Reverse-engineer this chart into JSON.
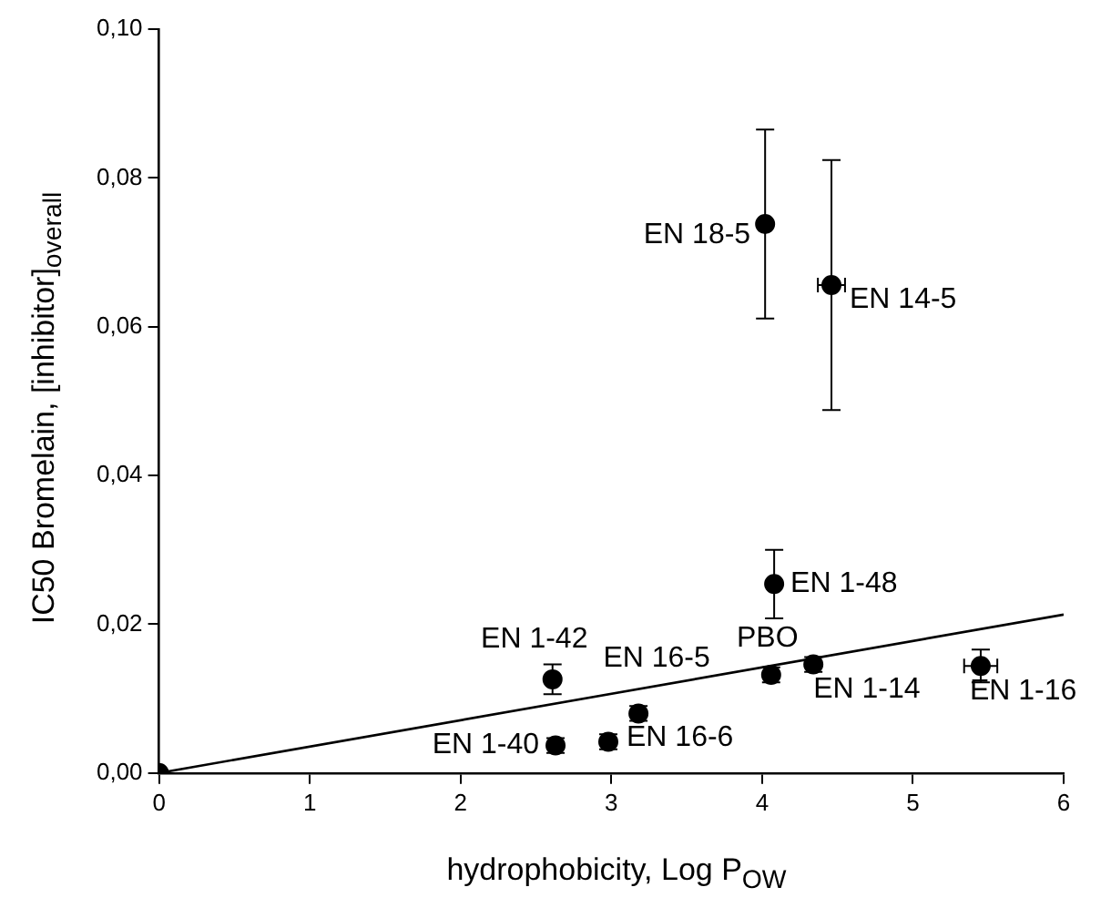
{
  "chart_data": {
    "type": "scatter",
    "xlabel": "hydrophobicity, Log P$_{OW}$",
    "ylabel": "IC50 Bromelain, [inhibitor]$_{overall}$",
    "series": [
      {
        "marker": "circle",
        "color": "#000000",
        "x": [
          0,
          4.02,
          4.46,
          4.08,
          4.06,
          4.34,
          5.45,
          2.61,
          3.18,
          2.63,
          2.98
        ],
        "values": [
          0,
          0.0738,
          0.0656,
          0.0254,
          0.0132,
          0.0146,
          0.0144,
          0.0126,
          0.008,
          0.0037,
          0.0042
        ],
        "errors": [
          null,
          0.0127,
          0.0168,
          0.0046,
          0.001,
          0.001,
          0.0022,
          0.002,
          0.001,
          0.001,
          0.001
        ],
        "xerrors": [
          null,
          null,
          0.09,
          null,
          null,
          null,
          0.11,
          null,
          null,
          null,
          null
        ]
      },
      {
        "type": "line",
        "marker": "none",
        "color": "#000000",
        "x": [
          0,
          6
        ],
        "values": [
          0,
          0.0213
        ]
      }
    ],
    "xlim": [
      0,
      6
    ],
    "xticks": [
      0,
      1,
      2,
      3,
      4,
      5,
      6
    ],
    "ylim": [
      0,
      0.1
    ],
    "yticks": [
      {
        "value": 0,
        "label": "0,00"
      },
      {
        "value": 0.02,
        "label": "0,02"
      },
      {
        "value": 0.04,
        "label": "0,04"
      },
      {
        "value": 0.06,
        "label": "0,06"
      },
      {
        "value": 0.08,
        "label": "0,08"
      },
      {
        "value": 0.1,
        "label": "0,10"
      }
    ],
    "annotations": [
      {
        "text": "EN 18-5",
        "x": 4.02,
        "y": 0.0738
      },
      {
        "text": "EN 14-5",
        "x": 4.46,
        "y": 0.0656
      },
      {
        "text": "EN 1-48",
        "x": 4.08,
        "y": 0.0254
      },
      {
        "text": "PBO",
        "x": 4.06,
        "y": 0.0132
      },
      {
        "text": "EN 1-14",
        "x": 4.34,
        "y": 0.0146
      },
      {
        "text": "EN 1-16",
        "x": 5.45,
        "y": 0.0144
      },
      {
        "text": "EN 1-42",
        "x": 2.61,
        "y": 0.0126
      },
      {
        "text": "EN 16-5",
        "x": 3.18,
        "y": 0.008
      },
      {
        "text": "EN 1-40",
        "x": 2.63,
        "y": 0.0037
      },
      {
        "text": "EN 16-6",
        "x": 2.98,
        "y": 0.0042
      }
    ],
    "grid": false,
    "legend": false,
    "line_style": "solid"
  }
}
